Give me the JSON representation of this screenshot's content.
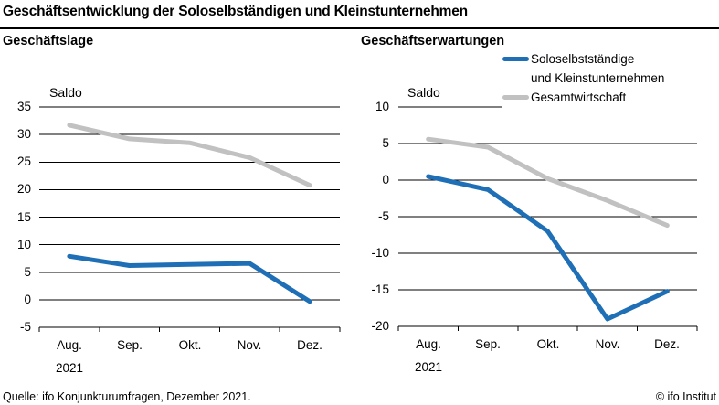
{
  "title": "Geschäftsentwicklung der Soloselbständigen und Kleinstunternehmen",
  "legend": {
    "items": [
      {
        "label": "Soloselbstständige und Kleinstunternehmen",
        "lines": [
          "Soloselbstständige",
          "und Kleinstunternehmen"
        ],
        "color": "#1e6fb6"
      },
      {
        "label": "Gesamtwirtschaft",
        "lines": [
          "Gesamtwirtschaft"
        ],
        "color": "#c1c1c1"
      }
    ]
  },
  "colors": {
    "series_blue": "#1e6fb6",
    "series_gray": "#c1c1c1",
    "gridline": "#000000",
    "divider": "#c9c9c9"
  },
  "footer": {
    "source": "Quelle: ifo Konjunkturumfragen, Dezember 2021.",
    "copyright": "© ifo Institut"
  },
  "chart_data": [
    {
      "type": "line",
      "title": "Geschäftslage",
      "ylabel": "Saldo",
      "categories": [
        "Aug.",
        "Sep.",
        "Okt.",
        "Nov.",
        "Dez."
      ],
      "x_sublabel": "2021",
      "yticks": [
        35,
        30,
        25,
        20,
        15,
        10,
        5,
        0,
        -5
      ],
      "ylim": [
        -5,
        35
      ],
      "grid": true,
      "series": [
        {
          "name": "Gesamtwirtschaft",
          "color": "#c1c1c1",
          "values": [
            31.7,
            29.2,
            28.5,
            25.8,
            20.8
          ]
        },
        {
          "name": "Soloselbstständige und Kleinstunternehmen",
          "color": "#1e6fb6",
          "values": [
            7.9,
            6.2,
            6.4,
            6.6,
            -0.3
          ]
        }
      ]
    },
    {
      "type": "line",
      "title": "Geschäftserwartungen",
      "ylabel": "Saldo",
      "categories": [
        "Aug.",
        "Sep.",
        "Okt.",
        "Nov.",
        "Dez."
      ],
      "x_sublabel": "2021",
      "yticks": [
        10,
        5,
        0,
        -5,
        -10,
        -15,
        -20
      ],
      "ylim": [
        -20,
        10
      ],
      "grid": true,
      "series": [
        {
          "name": "Gesamtwirtschaft",
          "color": "#c1c1c1",
          "values": [
            5.6,
            4.5,
            0.2,
            -2.8,
            -6.2
          ]
        },
        {
          "name": "Soloselbstständige und Kleinstunternehmen",
          "color": "#1e6fb6",
          "values": [
            0.5,
            -1.3,
            -7.0,
            -19.0,
            -15.2
          ]
        }
      ]
    }
  ]
}
